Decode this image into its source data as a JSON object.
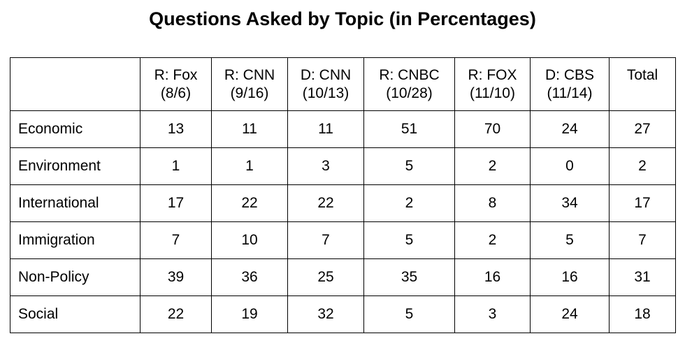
{
  "chart_data": {
    "type": "table",
    "title": "Questions Asked by Topic (in Percentages)",
    "columns": [
      {
        "line1": "R: Fox",
        "line2": "(8/6)"
      },
      {
        "line1": "R: CNN",
        "line2": "(9/16)"
      },
      {
        "line1": "D: CNN",
        "line2": "(10/13)"
      },
      {
        "line1": "R: CNBC",
        "line2": "(10/28)"
      },
      {
        "line1": "R: FOX",
        "line2": "(11/10)"
      },
      {
        "line1": "D: CBS",
        "line2": "(11/14)"
      },
      {
        "line1": "Total",
        "line2": ""
      }
    ],
    "rows": [
      {
        "label": "Economic",
        "values": [
          "13",
          "11",
          "11",
          "51",
          "70",
          "24",
          "27"
        ]
      },
      {
        "label": "Environment",
        "values": [
          "1",
          "1",
          "3",
          "5",
          "2",
          "0",
          "2"
        ]
      },
      {
        "label": "International",
        "values": [
          "17",
          "22",
          "22",
          "2",
          "8",
          "34",
          "17"
        ]
      },
      {
        "label": "Immigration",
        "values": [
          "7",
          "10",
          "7",
          "5",
          "2",
          "5",
          "7"
        ]
      },
      {
        "label": "Non-Policy",
        "values": [
          "39",
          "36",
          "25",
          "35",
          "16",
          "16",
          "31"
        ]
      },
      {
        "label": "Social",
        "values": [
          "22",
          "19",
          "32",
          "5",
          "3",
          "24",
          "18"
        ]
      }
    ]
  }
}
